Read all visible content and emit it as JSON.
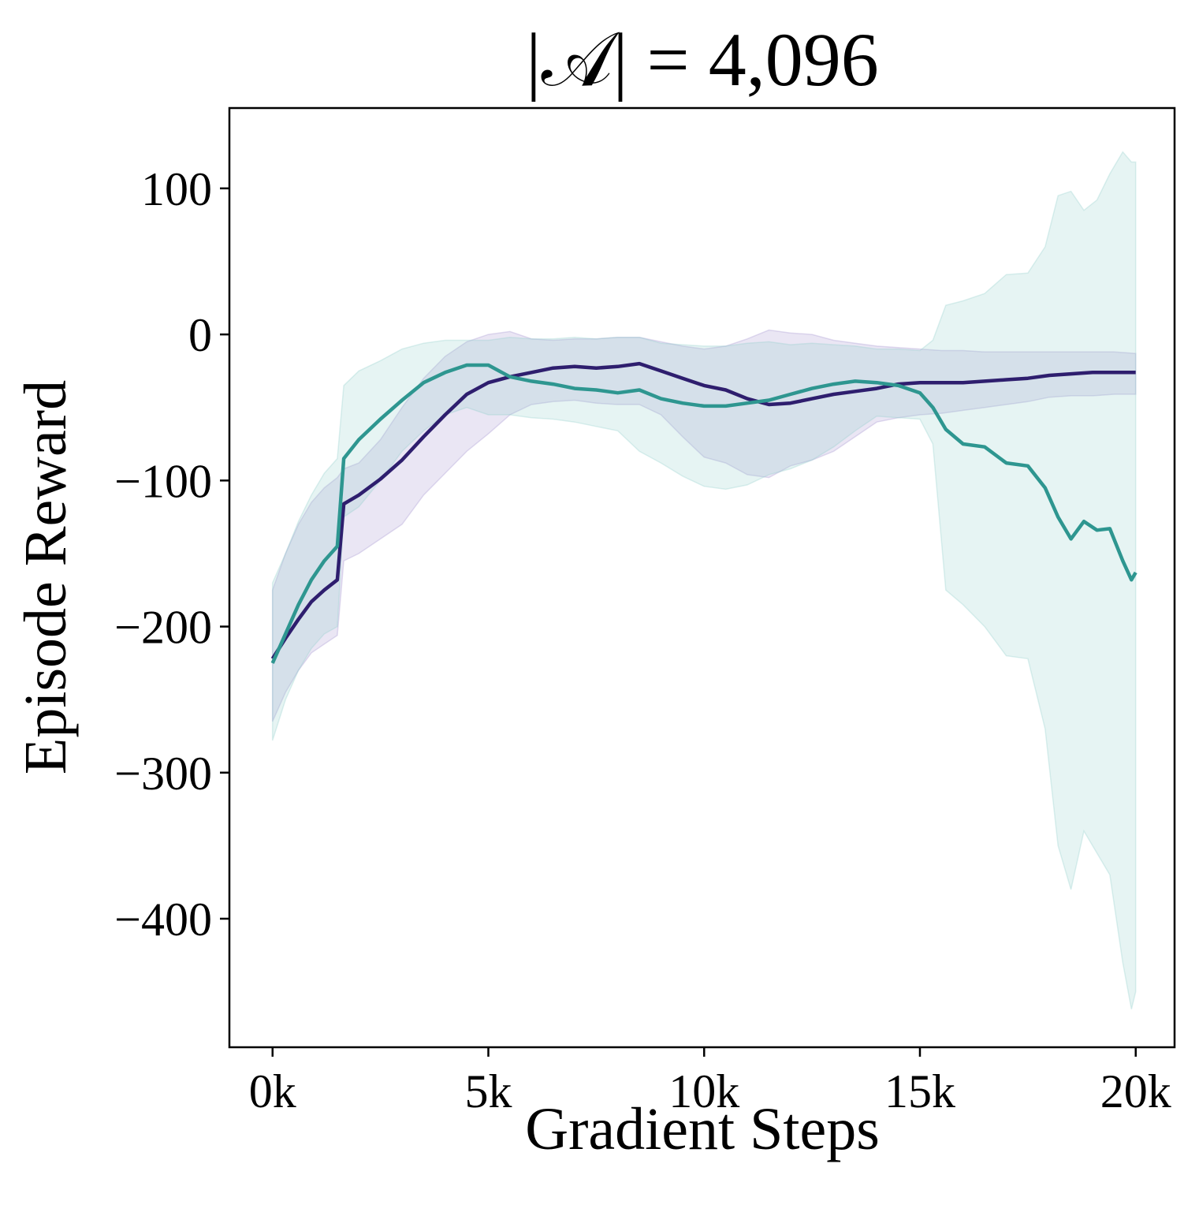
{
  "chart_data": {
    "type": "line",
    "title": "|𝒜| = 4,096",
    "xlabel": "Gradient Steps",
    "ylabel": "Episode Reward",
    "xlim": [
      -1000,
      20900
    ],
    "ylim": [
      -488,
      155
    ],
    "x_ticks": [
      {
        "value": 0,
        "label": "0k"
      },
      {
        "value": 5000,
        "label": "5k"
      },
      {
        "value": 10000,
        "label": "10k"
      },
      {
        "value": 15000,
        "label": "15k"
      },
      {
        "value": 20000,
        "label": "20k"
      }
    ],
    "y_ticks": [
      {
        "value": 100,
        "label": "100"
      },
      {
        "value": 0,
        "label": "0"
      },
      {
        "value": -100,
        "label": "−100"
      },
      {
        "value": -200,
        "label": "−200"
      },
      {
        "value": -300,
        "label": "−300"
      },
      {
        "value": -400,
        "label": "−400"
      }
    ],
    "grid": false,
    "legend": "none",
    "series": [
      {
        "color": "#2e1e6e",
        "band_color": "#a08fcc",
        "x": [
          0,
          300,
          600,
          900,
          1200,
          1500,
          1650,
          2000,
          2500,
          3000,
          3500,
          4000,
          4500,
          5000,
          5500,
          6000,
          6500,
          7000,
          7500,
          8000,
          8500,
          9000,
          9500,
          10000,
          10500,
          11000,
          11500,
          12000,
          12500,
          13000,
          13500,
          14000,
          14500,
          15000,
          15500,
          16000,
          16500,
          17000,
          17500,
          18000,
          18500,
          19000,
          19500,
          20000
        ],
        "y": [
          -222,
          -208,
          -195,
          -183,
          -175,
          -168,
          -116,
          -110,
          -99,
          -86,
          -70,
          -55,
          -41,
          -33,
          -29,
          -26,
          -23,
          -22,
          -23,
          -22,
          -20,
          -25,
          -30,
          -35,
          -38,
          -44,
          -48,
          -47,
          -44,
          -41,
          -39,
          -37,
          -34,
          -33,
          -33,
          -33,
          -32,
          -31,
          -30,
          -28,
          -27,
          -26,
          -26,
          -26
        ],
        "upper": [
          -175,
          -150,
          -130,
          -115,
          -105,
          -98,
          -92,
          -88,
          -72,
          -50,
          -30,
          -15,
          -5,
          0,
          2,
          -3,
          -4,
          -3,
          -3,
          -2,
          -2,
          -5,
          -8,
          -10,
          -8,
          -3,
          3,
          1,
          0,
          -4,
          -6,
          -8,
          -9,
          -10,
          -11,
          -11,
          -12,
          -12,
          -12,
          -12,
          -12,
          -12,
          -12,
          -13
        ],
        "lower": [
          -265,
          -245,
          -230,
          -218,
          -212,
          -206,
          -155,
          -150,
          -140,
          -130,
          -110,
          -95,
          -80,
          -68,
          -55,
          -48,
          -46,
          -45,
          -47,
          -48,
          -48,
          -55,
          -70,
          -84,
          -88,
          -96,
          -98,
          -90,
          -86,
          -80,
          -70,
          -60,
          -57,
          -55,
          -54,
          -52,
          -50,
          -48,
          -46,
          -43,
          -42,
          -42,
          -41,
          -41
        ]
      },
      {
        "color": "#2e9690",
        "band_color": "#8fcdc9",
        "x": [
          0,
          300,
          600,
          900,
          1200,
          1500,
          1650,
          2000,
          2500,
          3000,
          3500,
          4000,
          4500,
          5000,
          5500,
          6000,
          6500,
          7000,
          7500,
          8000,
          8500,
          9000,
          9500,
          10000,
          10500,
          11000,
          11500,
          12000,
          12500,
          13000,
          13500,
          14000,
          14500,
          15000,
          15300,
          15600,
          16000,
          16500,
          17000,
          17500,
          17900,
          18200,
          18500,
          18800,
          19100,
          19400,
          19700,
          19900,
          20000
        ],
        "y": [
          -225,
          -205,
          -185,
          -168,
          -155,
          -145,
          -85,
          -72,
          -58,
          -45,
          -33,
          -26,
          -21,
          -21,
          -29,
          -32,
          -34,
          -37,
          -38,
          -40,
          -38,
          -44,
          -47,
          -49,
          -49,
          -47,
          -45,
          -41,
          -37,
          -34,
          -32,
          -33,
          -35,
          -40,
          -50,
          -65,
          -75,
          -77,
          -88,
          -90,
          -105,
          -125,
          -140,
          -128,
          -134,
          -133,
          -155,
          -168,
          -163
        ],
        "upper": [
          -170,
          -150,
          -128,
          -110,
          -95,
          -85,
          -35,
          -25,
          -18,
          -10,
          -6,
          -4,
          -4,
          -4,
          -2,
          -3,
          -3,
          -2,
          -3,
          -2,
          -2,
          -6,
          -7,
          -8,
          -8,
          -6,
          -5,
          -7,
          -6,
          -7,
          -8,
          -10,
          -10,
          -11,
          -4,
          20,
          23,
          28,
          41,
          42,
          60,
          95,
          98,
          85,
          92,
          110,
          125,
          118,
          118
        ],
        "lower": [
          -278,
          -250,
          -230,
          -215,
          -205,
          -200,
          -125,
          -118,
          -100,
          -80,
          -66,
          -55,
          -50,
          -55,
          -55,
          -57,
          -58,
          -60,
          -63,
          -66,
          -80,
          -88,
          -97,
          -104,
          -106,
          -103,
          -96,
          -92,
          -86,
          -77,
          -66,
          -56,
          -57,
          -58,
          -75,
          -175,
          -185,
          -200,
          -220,
          -222,
          -270,
          -350,
          -380,
          -340,
          -355,
          -370,
          -430,
          -462,
          -450
        ]
      }
    ]
  }
}
